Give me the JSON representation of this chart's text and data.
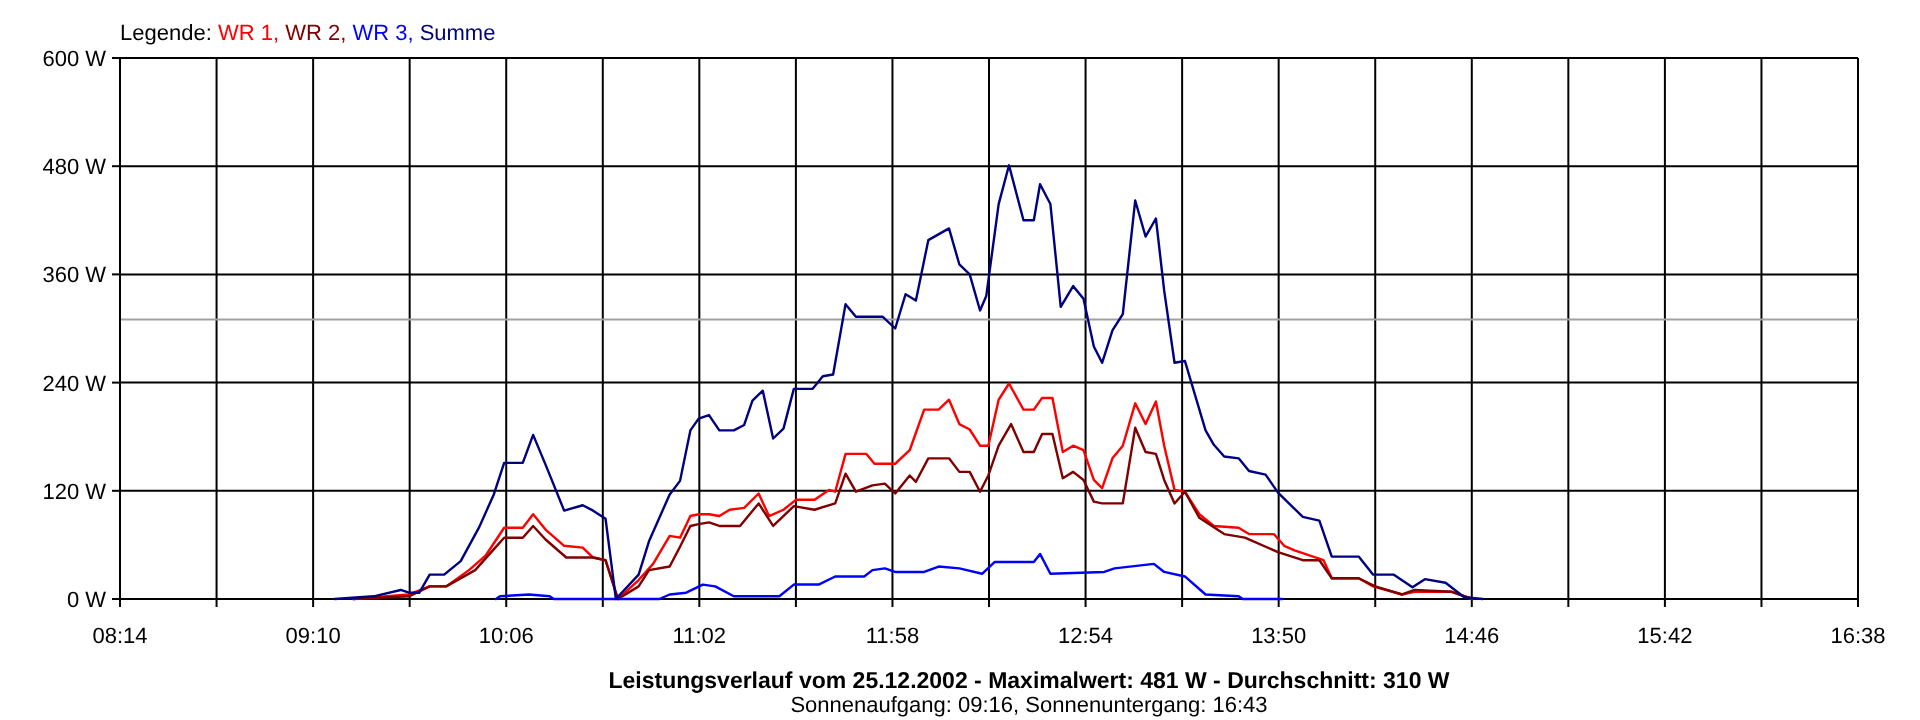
{
  "chart_data": {
    "type": "line",
    "title": "Leistungsverlauf vom 25.12.2002 - Maximalwert: 481 W - Durchschnitt: 310 W",
    "subtitle": "Sonnenaufgang: 09:16, Sonnenuntergang: 16:43",
    "legend_title": "Legende:",
    "legend": "top left",
    "grid": true,
    "xlim": [
      8.2333,
      16.6333
    ],
    "xticks": [
      {
        "value": 8.2333,
        "label": "08:14"
      },
      {
        "value": 8.7,
        "label": null
      },
      {
        "value": 9.1667,
        "label": "09:10"
      },
      {
        "value": 9.6333,
        "label": null
      },
      {
        "value": 10.1,
        "label": "10:06"
      },
      {
        "value": 10.5667,
        "label": null
      },
      {
        "value": 11.0333,
        "label": "11:02"
      },
      {
        "value": 11.5,
        "label": null
      },
      {
        "value": 11.9667,
        "label": "11:58"
      },
      {
        "value": 12.4333,
        "label": null
      },
      {
        "value": 12.9,
        "label": "12:54"
      },
      {
        "value": 13.3667,
        "label": null
      },
      {
        "value": 13.8333,
        "label": "13:50"
      },
      {
        "value": 14.3,
        "label": null
      },
      {
        "value": 14.7667,
        "label": "14:46"
      },
      {
        "value": 15.2333,
        "label": null
      },
      {
        "value": 15.7,
        "label": "15:42"
      },
      {
        "value": 16.1667,
        "label": null
      },
      {
        "value": 16.6333,
        "label": "16:38"
      }
    ],
    "ylim": [
      0,
      600
    ],
    "yticks": [
      {
        "value": 0,
        "label": "0 W"
      },
      {
        "value": 120,
        "label": "120 W"
      },
      {
        "value": 240,
        "label": "240 W"
      },
      {
        "value": 360,
        "label": "360 W"
      },
      {
        "value": 480,
        "label": "480 W"
      },
      {
        "value": 600,
        "label": "600 W"
      }
    ],
    "ref_lines": [
      {
        "axis": "y",
        "value": 310,
        "color": "#a0a0a0"
      }
    ],
    "series": [
      {
        "name": "WR 1,",
        "color": "#ff0000",
        "x": [
          9.36,
          9.63,
          9.73,
          9.81,
          9.92,
          10.0,
          10.09,
          10.18,
          10.23,
          10.29,
          10.38,
          10.47,
          10.52,
          10.58,
          10.64,
          10.74,
          10.81,
          10.89,
          10.94,
          10.99,
          11.03,
          11.08,
          11.13,
          11.18,
          11.25,
          11.32,
          11.37,
          11.44,
          11.5,
          11.59,
          11.66,
          11.69,
          11.74,
          11.84,
          11.88,
          11.98,
          12.05,
          12.12,
          12.19,
          12.24,
          12.29,
          12.34,
          12.39,
          12.43,
          12.48,
          12.53,
          12.6,
          12.65,
          12.69,
          12.74,
          12.79,
          12.84,
          12.89,
          12.94,
          12.98,
          13.03,
          13.08,
          13.14,
          13.19,
          13.24,
          13.28,
          13.33,
          13.38,
          13.45,
          13.52,
          13.64,
          13.69,
          13.81,
          13.86,
          13.91,
          14.05,
          14.09,
          14.22,
          14.29,
          14.43,
          14.49,
          14.67,
          14.77
        ],
        "values": [
          0,
          5,
          14,
          14,
          32,
          48,
          79,
          79,
          94,
          77,
          59,
          57,
          46,
          43,
          0,
          21,
          39,
          70,
          68,
          92,
          94,
          94,
          92,
          99,
          101,
          117,
          92,
          99,
          110,
          110,
          121,
          119,
          161,
          161,
          150,
          150,
          165,
          210,
          210,
          221,
          194,
          188,
          170,
          170,
          221,
          239,
          210,
          210,
          223,
          223,
          163,
          170,
          165,
          132,
          123,
          156,
          170,
          217,
          194,
          219,
          170,
          121,
          119,
          94,
          81,
          79,
          72,
          72,
          59,
          54,
          43,
          23,
          23,
          14,
          5,
          8,
          8,
          0
        ]
      },
      {
        "name": "WR 2,",
        "color": "#800000",
        "x": [
          9.36,
          9.63,
          9.73,
          9.81,
          9.95,
          10.02,
          10.09,
          10.18,
          10.23,
          10.29,
          10.39,
          10.52,
          10.58,
          10.64,
          10.74,
          10.79,
          10.89,
          10.94,
          10.99,
          11.03,
          11.08,
          11.13,
          11.23,
          11.32,
          11.39,
          11.49,
          11.59,
          11.69,
          11.74,
          11.79,
          11.87,
          11.93,
          11.98,
          12.05,
          12.08,
          12.14,
          12.24,
          12.29,
          12.34,
          12.39,
          12.43,
          12.48,
          12.54,
          12.6,
          12.65,
          12.69,
          12.74,
          12.79,
          12.84,
          12.89,
          12.94,
          12.98,
          13.08,
          13.14,
          13.19,
          13.24,
          13.28,
          13.33,
          13.38,
          13.45,
          13.57,
          13.67,
          13.83,
          13.95,
          14.03,
          14.09,
          14.22,
          14.3,
          14.43,
          14.49,
          14.67,
          14.77
        ],
        "values": [
          0,
          3,
          14,
          14,
          32,
          50,
          68,
          68,
          81,
          66,
          46,
          46,
          43,
          0,
          14,
          32,
          36,
          58,
          81,
          83,
          85,
          81,
          81,
          106,
          81,
          103,
          99,
          106,
          139,
          119,
          126,
          128,
          117,
          137,
          130,
          156,
          156,
          141,
          141,
          119,
          137,
          170,
          194,
          163,
          163,
          183,
          183,
          134,
          141,
          132,
          108,
          106,
          106,
          190,
          163,
          161,
          132,
          106,
          119,
          90,
          72,
          68,
          52,
          43,
          43,
          23,
          23,
          14,
          5,
          10,
          8,
          0
        ]
      },
      {
        "name": "WR 3,",
        "color": "#0000ff",
        "x": [
          10.05,
          10.07,
          10.21,
          10.31,
          10.33,
          10.84,
          10.89,
          10.97,
          11.05,
          11.11,
          11.2,
          11.42,
          11.49,
          11.61,
          11.69,
          11.83,
          11.87,
          11.93,
          11.98,
          12.12,
          12.19,
          12.29,
          12.4,
          12.46,
          12.65,
          12.68,
          12.73,
          12.99,
          13.04,
          13.23,
          13.28,
          13.38,
          13.48,
          13.64,
          13.66,
          13.85
        ],
        "values": [
          0,
          3,
          5,
          3,
          0,
          0,
          5,
          7,
          16,
          14,
          3,
          3,
          16,
          16,
          25,
          25,
          32,
          34,
          30,
          30,
          36,
          34,
          28,
          41,
          41,
          50,
          28,
          30,
          34,
          39,
          30,
          25,
          5,
          3,
          0,
          0
        ]
      },
      {
        "name": "Summe",
        "color": "#000080",
        "x": [
          9.27,
          9.46,
          9.59,
          9.63,
          9.68,
          9.73,
          9.8,
          9.88,
          9.97,
          10.04,
          10.09,
          10.18,
          10.23,
          10.29,
          10.38,
          10.47,
          10.52,
          10.58,
          10.63,
          10.74,
          10.79,
          10.89,
          10.94,
          10.99,
          11.03,
          11.08,
          11.13,
          11.2,
          11.25,
          11.29,
          11.34,
          11.39,
          11.44,
          11.49,
          11.58,
          11.63,
          11.68,
          11.74,
          11.79,
          11.92,
          11.98,
          12.03,
          12.08,
          12.14,
          12.24,
          12.29,
          12.34,
          12.39,
          12.42,
          12.48,
          12.53,
          12.6,
          12.65,
          12.68,
          12.73,
          12.78,
          12.84,
          12.89,
          12.94,
          12.98,
          13.03,
          13.08,
          13.14,
          13.19,
          13.24,
          13.28,
          13.33,
          13.38,
          13.48,
          13.52,
          13.57,
          13.64,
          13.69,
          13.77,
          13.83,
          13.95,
          14.03,
          14.09,
          14.22,
          14.29,
          14.39,
          14.48,
          14.54,
          14.64,
          14.73,
          14.82
        ],
        "values": [
          0,
          3,
          10,
          7,
          7,
          27,
          27,
          42,
          80,
          116,
          151,
          151,
          182,
          149,
          98,
          104,
          98,
          89,
          0,
          27,
          64,
          116,
          131,
          187,
          200,
          204,
          187,
          187,
          193,
          220,
          231,
          178,
          189,
          233,
          233,
          247,
          249,
          327,
          313,
          313,
          300,
          338,
          331,
          398,
          411,
          371,
          360,
          320,
          336,
          438,
          481,
          420,
          420,
          460,
          438,
          324,
          347,
          333,
          280,
          262,
          298,
          316,
          442,
          402,
          422,
          342,
          262,
          264,
          187,
          171,
          158,
          156,
          142,
          138,
          118,
          91,
          87,
          47,
          47,
          27,
          27,
          13,
          22,
          18,
          2,
          0
        ]
      }
    ]
  }
}
